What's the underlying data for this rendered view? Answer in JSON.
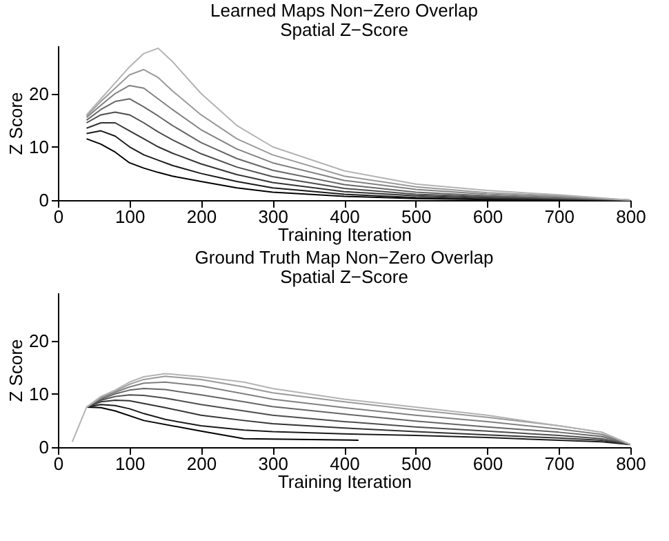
{
  "chart_data": [
    {
      "type": "line",
      "title": "Learned Maps Non−Zero Overlap",
      "subtitle": "Spatial Z−Score",
      "xlabel": "Training Iteration",
      "ylabel": "Z Score",
      "xlim": [
        0,
        800
      ],
      "xticks": [
        0,
        100,
        200,
        300,
        400,
        500,
        600,
        700,
        800
      ],
      "ylim": [
        0,
        29
      ],
      "yticks": [
        0,
        10,
        20
      ],
      "grid": false,
      "marker": "none",
      "line_style": "solid",
      "series": [
        {
          "color": "#000000",
          "x": [
            40,
            60,
            80,
            100,
            120,
            140,
            160,
            200,
            250,
            300,
            400,
            500,
            600,
            700,
            800
          ],
          "values": [
            11.5,
            10.5,
            9,
            7,
            6,
            5.2,
            4.5,
            3.5,
            2.3,
            1.5,
            0.7,
            0.3,
            0.1,
            0,
            0
          ]
        },
        {
          "color": "#1a1a1a",
          "x": [
            40,
            60,
            80,
            100,
            120,
            140,
            160,
            200,
            250,
            300,
            400,
            500,
            600,
            700,
            800
          ],
          "values": [
            12.5,
            13,
            12,
            10,
            8.5,
            7.5,
            6.5,
            5,
            3.5,
            2.3,
            1.1,
            0.5,
            0.2,
            0.1,
            0
          ]
        },
        {
          "color": "#333333",
          "x": [
            40,
            60,
            80,
            100,
            120,
            140,
            160,
            200,
            250,
            300,
            400,
            500,
            600,
            700,
            800
          ],
          "values": [
            13.5,
            14.5,
            14.5,
            13,
            11.5,
            10,
            8.8,
            6.8,
            4.8,
            3.3,
            1.6,
            0.8,
            0.4,
            0.2,
            0
          ]
        },
        {
          "color": "#4d4d4d",
          "x": [
            40,
            60,
            80,
            100,
            120,
            140,
            160,
            200,
            250,
            300,
            400,
            500,
            600,
            700,
            800
          ],
          "values": [
            14.5,
            16,
            16.5,
            16,
            14.5,
            12.8,
            11.3,
            8.7,
            6.2,
            4.4,
            2.2,
            1.1,
            0.6,
            0.3,
            0
          ]
        },
        {
          "color": "#666666",
          "x": [
            40,
            60,
            80,
            100,
            120,
            140,
            160,
            200,
            250,
            300,
            400,
            500,
            600,
            700,
            800
          ],
          "values": [
            15,
            17,
            18.5,
            19,
            17.5,
            15.8,
            14,
            10.8,
            7.8,
            5.6,
            2.9,
            1.5,
            0.8,
            0.4,
            0
          ]
        },
        {
          "color": "#808080",
          "x": [
            40,
            60,
            80,
            100,
            120,
            140,
            160,
            200,
            250,
            300,
            400,
            500,
            600,
            700,
            800
          ],
          "values": [
            15.5,
            17.8,
            20,
            21.5,
            21,
            19,
            17,
            13.2,
            9.6,
            7,
            3.7,
            2,
            1.1,
            0.6,
            0
          ]
        },
        {
          "color": "#999999",
          "x": [
            40,
            60,
            80,
            100,
            120,
            140,
            160,
            200,
            250,
            300,
            400,
            500,
            600,
            700,
            800
          ],
          "values": [
            15.8,
            18.5,
            21,
            23.5,
            24.5,
            23,
            20.5,
            16,
            11.5,
            8.5,
            4.5,
            2.5,
            1.4,
            0.8,
            0
          ]
        },
        {
          "color": "#b3b3b3",
          "x": [
            40,
            60,
            80,
            100,
            120,
            140,
            160,
            200,
            250,
            300,
            400,
            500,
            600,
            700,
            800
          ],
          "values": [
            16,
            19,
            22,
            25,
            27.5,
            28.5,
            26,
            20,
            14,
            10,
            5.5,
            3,
            1.8,
            1,
            0
          ]
        }
      ]
    },
    {
      "type": "line",
      "title": "Ground Truth Map Non−Zero Overlap",
      "subtitle": "Spatial Z−Score",
      "xlabel": "Training Iteration",
      "ylabel": "Z Score",
      "xlim": [
        0,
        800
      ],
      "xticks": [
        0,
        100,
        200,
        300,
        400,
        500,
        600,
        700,
        800
      ],
      "ylim": [
        0,
        29
      ],
      "yticks": [
        0,
        10,
        20
      ],
      "grid": false,
      "marker": "none",
      "line_style": "solid",
      "series": [
        {
          "color": "#000000",
          "x": [
            40,
            60,
            80,
            120,
            200,
            260,
            420
          ],
          "values": [
            7.5,
            7.4,
            6.8,
            5,
            3,
            1.6,
            1.3
          ]
        },
        {
          "color": "#1a1a1a",
          "x": [
            40,
            60,
            80,
            100,
            120,
            150,
            200,
            260,
            300,
            400,
            500,
            600,
            700,
            760,
            800
          ],
          "values": [
            7.5,
            8,
            7.8,
            7.2,
            6.3,
            5.2,
            4,
            3.2,
            2.9,
            2.5,
            2.2,
            1.8,
            1.3,
            1,
            0.5
          ]
        },
        {
          "color": "#333333",
          "x": [
            40,
            60,
            80,
            100,
            120,
            150,
            200,
            260,
            300,
            400,
            500,
            600,
            700,
            760,
            800
          ],
          "values": [
            7.5,
            8.5,
            8.8,
            8.7,
            8.2,
            7.4,
            6,
            5,
            4.4,
            3.6,
            2.9,
            2.3,
            1.7,
            1.3,
            0.5
          ]
        },
        {
          "color": "#4d4d4d",
          "x": [
            40,
            60,
            80,
            100,
            120,
            150,
            200,
            260,
            300,
            400,
            500,
            600,
            700,
            760,
            800
          ],
          "values": [
            7.5,
            8.8,
            9.5,
            9.8,
            9.7,
            9.2,
            8,
            6.8,
            6,
            4.8,
            3.8,
            3,
            2.2,
            1.6,
            0.5
          ]
        },
        {
          "color": "#666666",
          "x": [
            40,
            60,
            80,
            100,
            120,
            150,
            200,
            260,
            300,
            400,
            500,
            600,
            700,
            760,
            800
          ],
          "values": [
            7.5,
            9,
            10,
            10.7,
            11,
            10.8,
            9.8,
            8.5,
            7.6,
            6.2,
            4.9,
            3.8,
            2.8,
            2,
            0.5
          ]
        },
        {
          "color": "#808080",
          "x": [
            40,
            60,
            80,
            100,
            120,
            150,
            200,
            260,
            300,
            400,
            500,
            600,
            700,
            760,
            800
          ],
          "values": [
            7.5,
            9.2,
            10.3,
            11.3,
            12,
            12.2,
            11.5,
            10,
            9,
            7.4,
            6,
            4.8,
            3.4,
            2.4,
            0.5
          ]
        },
        {
          "color": "#999999",
          "x": [
            40,
            60,
            80,
            100,
            120,
            150,
            200,
            260,
            300,
            400,
            500,
            600,
            700,
            760,
            800
          ],
          "values": [
            7.5,
            9.4,
            10.5,
            11.8,
            12.7,
            13.3,
            12.7,
            11.3,
            10.2,
            8.5,
            7,
            5.6,
            4,
            2.8,
            0.5
          ]
        },
        {
          "color": "#b3b3b3",
          "x": [
            20,
            40,
            60,
            80,
            100,
            120,
            150,
            200,
            260,
            300,
            400,
            500,
            600,
            700,
            760,
            800
          ],
          "values": [
            1,
            7.5,
            9.5,
            10.7,
            12.2,
            13.2,
            13.8,
            13.2,
            12.2,
            11,
            9,
            7.5,
            6,
            4,
            2.8,
            0.5
          ]
        }
      ]
    }
  ]
}
